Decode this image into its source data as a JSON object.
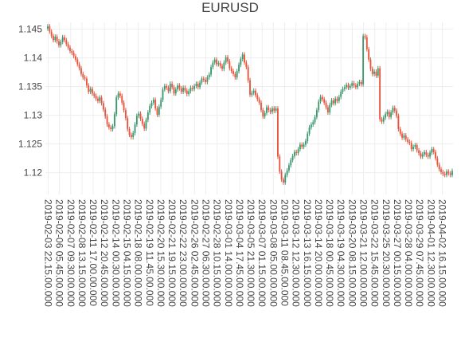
{
  "chart_data": {
    "type": "candlestick",
    "title": "EURUSD",
    "xlabel": "",
    "ylabel": "",
    "ylim": [
      1.1162,
      1.1462
    ],
    "yticks": [
      1.12,
      1.125,
      1.13,
      1.135,
      1.14,
      1.145
    ],
    "ytick_labels": [
      "1.12",
      "1.125",
      "1.13",
      "1.135",
      "1.14",
      "1.145"
    ],
    "grid": true,
    "legend": "none",
    "increasing_color": "#3d9970",
    "decreasing_color": "#e8553e",
    "xtick_labels": [
      "2019-02-03 22.15.00.000",
      "2019-02-06 05.45.00.000",
      "2019-02-07 09.30.00.000",
      "2019-02-08 13.15.00.000",
      "2019-02-11 17.00.00.000",
      "2019-02-12 20.45.00.000",
      "2019-02-14 00.30.00.000",
      "2019-02-15 04.15.00.000",
      "2019-02-18 08.00.00.000",
      "2019-02-19 11.45.00.000",
      "2019-02-20 15.30.00.000",
      "2019-02-21 19.15.00.000",
      "2019-02-22 23.00.00.000",
      "2019-02-26 02.45.00.000",
      "2019-02-27 06.30.00.000",
      "2019-02-28 10.15.00.000",
      "2019-03-01 14.00.00.000",
      "2019-03-04 17.45.00.000",
      "2019-03-05 21.30.00.000",
      "2019-03-07 01.15.00.000",
      "2019-03-08 05.00.00.000",
      "2019-03-11 08.45.00.000",
      "2019-03-12 12.30.00.000",
      "2019-03-13 16.15.00.000",
      "2019-03-14 20.00.00.000",
      "2019-03-18 00.45.00.000",
      "2019-03-19 04.30.00.000",
      "2019-03-20 08.15.00.000",
      "2019-03-21 12.00.00.000",
      "2019-03-22 15.45.00.000",
      "2019-03-25 20.30.00.000",
      "2019-03-27 00.15.00.000",
      "2019-03-28 04.00.00.000",
      "2019-03-29 07.45.00.000",
      "2019-04-01 12.30.00.000",
      "2019-04-02 16.15.00.000"
    ],
    "close": [
      1.1455,
      1.1446,
      1.1438,
      1.1431,
      1.1437,
      1.1429,
      1.1422,
      1.1428,
      1.1436,
      1.1431,
      1.1424,
      1.1418,
      1.1412,
      1.1409,
      1.1403,
      1.1397,
      1.1389,
      1.1382,
      1.1372,
      1.1366,
      1.1364,
      1.1352,
      1.1341,
      1.1346,
      1.1338,
      1.1334,
      1.1329,
      1.1325,
      1.1331,
      1.1321,
      1.131,
      1.1298,
      1.1284,
      1.1279,
      1.1276,
      1.1281,
      1.1302,
      1.1331,
      1.1338,
      1.1334,
      1.1322,
      1.1309,
      1.1295,
      1.1276,
      1.1266,
      1.1262,
      1.1269,
      1.1284,
      1.1299,
      1.1303,
      1.1294,
      1.1285,
      1.1277,
      1.1292,
      1.1305,
      1.1316,
      1.1322,
      1.1327,
      1.1312,
      1.1301,
      1.1315,
      1.1327,
      1.1345,
      1.1351,
      1.1348,
      1.1342,
      1.1355,
      1.1349,
      1.1338,
      1.1345,
      1.1352,
      1.1347,
      1.1341,
      1.1348,
      1.1343,
      1.1337,
      1.1342,
      1.1348,
      1.1346,
      1.1351,
      1.1355,
      1.1349,
      1.1357,
      1.1364,
      1.1362,
      1.1358,
      1.1366,
      1.1371,
      1.1384,
      1.1392,
      1.1397,
      1.1389,
      1.1391,
      1.1386,
      1.1381,
      1.1392,
      1.1401,
      1.1394,
      1.1382,
      1.1377,
      1.1372,
      1.1366,
      1.1377,
      1.1388,
      1.1398,
      1.1406,
      1.1392,
      1.1384,
      1.1361,
      1.1336,
      1.1339,
      1.1343,
      1.1335,
      1.1328,
      1.1322,
      1.1309,
      1.1298,
      1.1304,
      1.1314,
      1.1309,
      1.1306,
      1.1312,
      1.1308,
      1.1312,
      1.1228,
      1.1202,
      1.1188,
      1.1183,
      1.1196,
      1.1204,
      1.1213,
      1.1222,
      1.1229,
      1.1236,
      1.1234,
      1.1241,
      1.1249,
      1.1245,
      1.1249,
      1.1255,
      1.1268,
      1.1279,
      1.1284,
      1.1288,
      1.1297,
      1.1309,
      1.1324,
      1.1332,
      1.1328,
      1.1322,
      1.1314,
      1.1305,
      1.1318,
      1.1326,
      1.1321,
      1.1329,
      1.1325,
      1.1332,
      1.1341,
      1.1346,
      1.1349,
      1.1353,
      1.1348,
      1.1351,
      1.1356,
      1.1352,
      1.1349,
      1.1355,
      1.1358,
      1.1354,
      1.1438,
      1.1436,
      1.1415,
      1.1397,
      1.1381,
      1.1372,
      1.1376,
      1.1369,
      1.1382,
      1.1293,
      1.1289,
      1.1296,
      1.1302,
      1.1306,
      1.1297,
      1.1305,
      1.1313,
      1.1308,
      1.1299,
      1.1276,
      1.1268,
      1.1261,
      1.1265,
      1.1258,
      1.1254,
      1.1252,
      1.1241,
      1.1245,
      1.1248,
      1.1239,
      1.1234,
      1.1228,
      1.1232,
      1.1236,
      1.1231,
      1.1228,
      1.1235,
      1.1241,
      1.1236,
      1.1225,
      1.1214,
      1.1206,
      1.1201,
      1.1198,
      1.1196,
      1.1202,
      1.1199,
      1.1196,
      1.1203
    ]
  }
}
